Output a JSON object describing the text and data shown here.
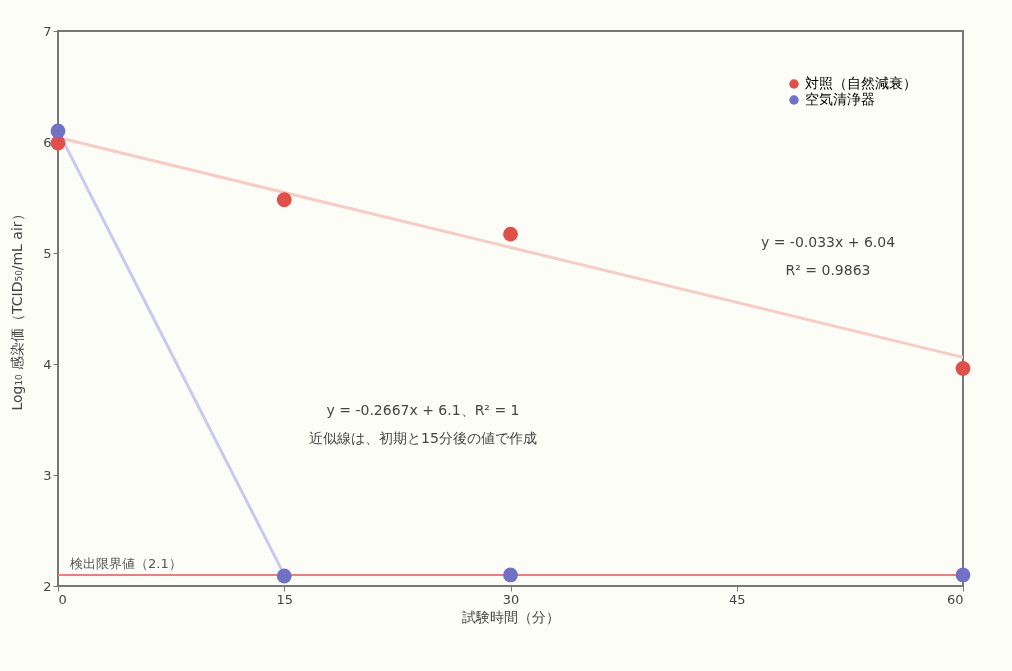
{
  "chart_data": {
    "type": "scatter",
    "xlabel": "試験時間（分）",
    "ylabel": "Log₁₀ 感染価（TCID₅₀/mL air）",
    "xlim": [
      0,
      60
    ],
    "xticks": [
      0,
      15,
      30,
      45,
      60
    ],
    "ylim": [
      2,
      7
    ],
    "yticks": [
      2,
      3,
      4,
      5,
      6,
      7
    ],
    "legend": "top right",
    "marker": "circle",
    "series": [
      {
        "type": "line",
        "marker": "none",
        "color": "#f5cdc5",
        "x": [
          0,
          60
        ],
        "values": [
          6.04,
          4.06
        ]
      },
      {
        "type": "line",
        "marker": "none",
        "color": "#c9c9ee",
        "x": [
          0,
          15
        ],
        "values": [
          6.1,
          2.1
        ]
      },
      {
        "name": "対照（自然減衰）",
        "color": "#e0504a",
        "x": [
          0,
          15,
          30,
          60
        ],
        "values": [
          5.99,
          5.48,
          5.17,
          3.96
        ]
      },
      {
        "name": "空気清浄器",
        "color": "#7272c4",
        "x": [
          0,
          15,
          30,
          60
        ],
        "values": [
          6.1,
          2.09,
          2.1,
          2.1
        ]
      }
    ],
    "ref_lines": [
      {
        "axis": "y",
        "value": 2.1,
        "label": "検出限界値（2.1）",
        "color": "#e88080"
      }
    ],
    "annotations": [
      "y = -0.033x + 6.04",
      "R² = 0.9863",
      "y = -0.2667x + 6.1、R² = 1",
      "近似線は、初期と15分後の値で作成"
    ]
  }
}
